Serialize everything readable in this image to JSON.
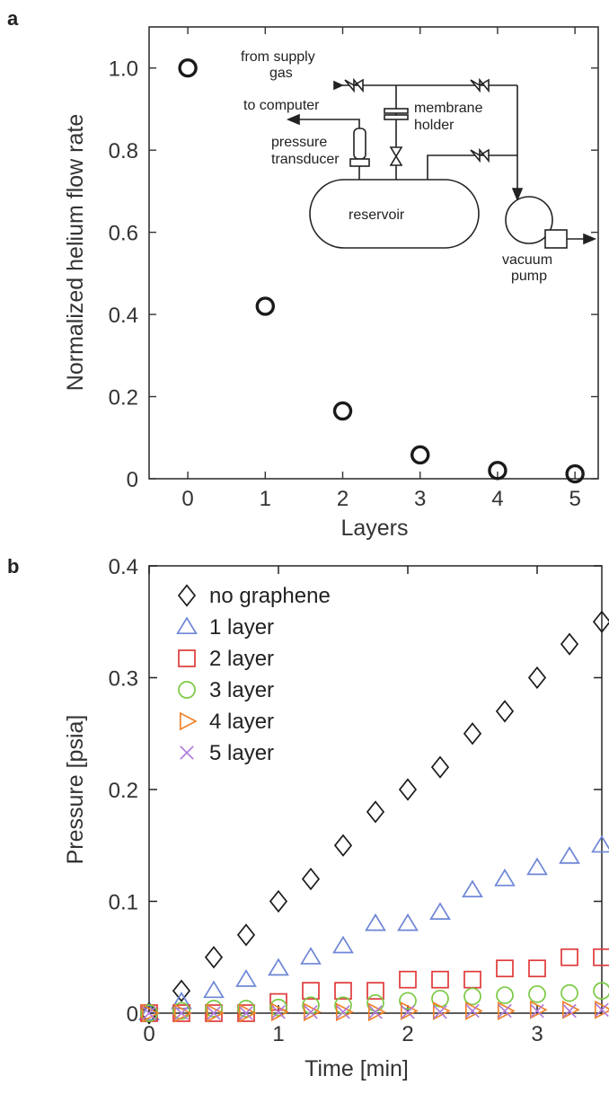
{
  "panel_a_letter": "a",
  "panel_b_letter": "b",
  "chart_data": [
    {
      "type": "scatter",
      "panel": "a",
      "xlabel": "Layers",
      "ylabel": "Normalized helium flow rate",
      "xlim": [
        -0.5,
        5.3
      ],
      "ylim": [
        0,
        1.1
      ],
      "xticks": [
        "0",
        "1",
        "2",
        "3",
        "4",
        "5"
      ],
      "yticks": [
        "0",
        "0.2",
        "0.4",
        "0.6",
        "0.8",
        "1.0"
      ],
      "grid": false,
      "x": [
        0,
        1,
        2,
        3,
        4,
        5
      ],
      "y": [
        1.0,
        0.42,
        0.165,
        0.058,
        0.02,
        0.012
      ],
      "marker": "circle",
      "color": "#1a1a1a",
      "inset_diagram": {
        "labels": {
          "from_supply_gas": [
            "from supply",
            "gas"
          ],
          "to_computer": "to computer",
          "pressure_transducer": [
            "pressure",
            "transducer"
          ],
          "membrane_holder": [
            "membrane",
            "holder"
          ],
          "reservoir": "reservoir",
          "vacuum_pump": [
            "vacuum",
            "pump"
          ]
        }
      }
    },
    {
      "type": "scatter",
      "panel": "b",
      "xlabel": "Time [min]",
      "ylabel": "Pressure [psia]",
      "xlim": [
        0,
        3.5
      ],
      "ylim": [
        0,
        0.4
      ],
      "xticks": [
        "0",
        "1",
        "2",
        "3"
      ],
      "yticks": [
        "0",
        "0.1",
        "0.2",
        "0.3",
        "0.4"
      ],
      "grid": false,
      "legend_position": "top-left",
      "series": [
        {
          "name": "no graphene",
          "marker": "diamond",
          "color": "#1a1a1a",
          "x": [
            0,
            0.25,
            0.5,
            0.75,
            1.0,
            1.25,
            1.5,
            1.75,
            2.0,
            2.25,
            2.5,
            2.75,
            3.0,
            3.25,
            3.5
          ],
          "y": [
            0,
            0.02,
            0.05,
            0.07,
            0.1,
            0.12,
            0.15,
            0.18,
            0.2,
            0.22,
            0.25,
            0.27,
            0.3,
            0.33,
            0.35
          ]
        },
        {
          "name": "1 layer",
          "marker": "triangle-up",
          "color": "#6d86d6",
          "x": [
            0,
            0.25,
            0.5,
            0.75,
            1.0,
            1.25,
            1.5,
            1.75,
            2.0,
            2.25,
            2.5,
            2.75,
            3.0,
            3.25,
            3.5
          ],
          "y": [
            0,
            0.01,
            0.02,
            0.03,
            0.04,
            0.05,
            0.06,
            0.08,
            0.08,
            0.09,
            0.11,
            0.12,
            0.13,
            0.14,
            0.15
          ]
        },
        {
          "name": "2 layer",
          "marker": "square",
          "color": "#e03a3a",
          "x": [
            0,
            0.25,
            0.5,
            0.75,
            1.0,
            1.25,
            1.5,
            1.75,
            2.0,
            2.25,
            2.5,
            2.75,
            3.0,
            3.25,
            3.5
          ],
          "y": [
            0,
            0,
            0,
            0,
            0.01,
            0.02,
            0.02,
            0.02,
            0.03,
            0.03,
            0.03,
            0.04,
            0.04,
            0.05,
            0.05
          ]
        },
        {
          "name": "3 layer",
          "marker": "circle",
          "color": "#7ac943",
          "x": [
            0,
            0.25,
            0.5,
            0.75,
            1.0,
            1.25,
            1.5,
            1.75,
            2.0,
            2.25,
            2.5,
            2.75,
            3.0,
            3.25,
            3.5
          ],
          "y": [
            0,
            0.002,
            0.004,
            0.004,
            0.005,
            0.007,
            0.007,
            0.009,
            0.011,
            0.013,
            0.015,
            0.016,
            0.017,
            0.018,
            0.02
          ]
        },
        {
          "name": "4 layer",
          "marker": "triangle-right",
          "color": "#f0822a",
          "x": [
            0,
            0.25,
            0.5,
            0.75,
            1.0,
            1.25,
            1.5,
            1.75,
            2.0,
            2.25,
            2.5,
            2.75,
            3.0,
            3.25,
            3.5
          ],
          "y": [
            0,
            0,
            0,
            0,
            0.001,
            0.001,
            0.001,
            0.001,
            0.002,
            0.002,
            0.002,
            0.002,
            0.003,
            0.003,
            0.003
          ]
        },
        {
          "name": "5 layer",
          "marker": "x",
          "color": "#b07ad8",
          "x": [
            0,
            0.25,
            0.5,
            0.75,
            1.0,
            1.25,
            1.5,
            1.75,
            2.0,
            2.25,
            2.5,
            2.75,
            3.0,
            3.25,
            3.5
          ],
          "y": [
            0,
            0,
            0,
            0,
            0.001,
            0.001,
            0.001,
            0.001,
            0.001,
            0.001,
            0.002,
            0.002,
            0.002,
            0.002,
            0.003
          ]
        }
      ]
    }
  ]
}
